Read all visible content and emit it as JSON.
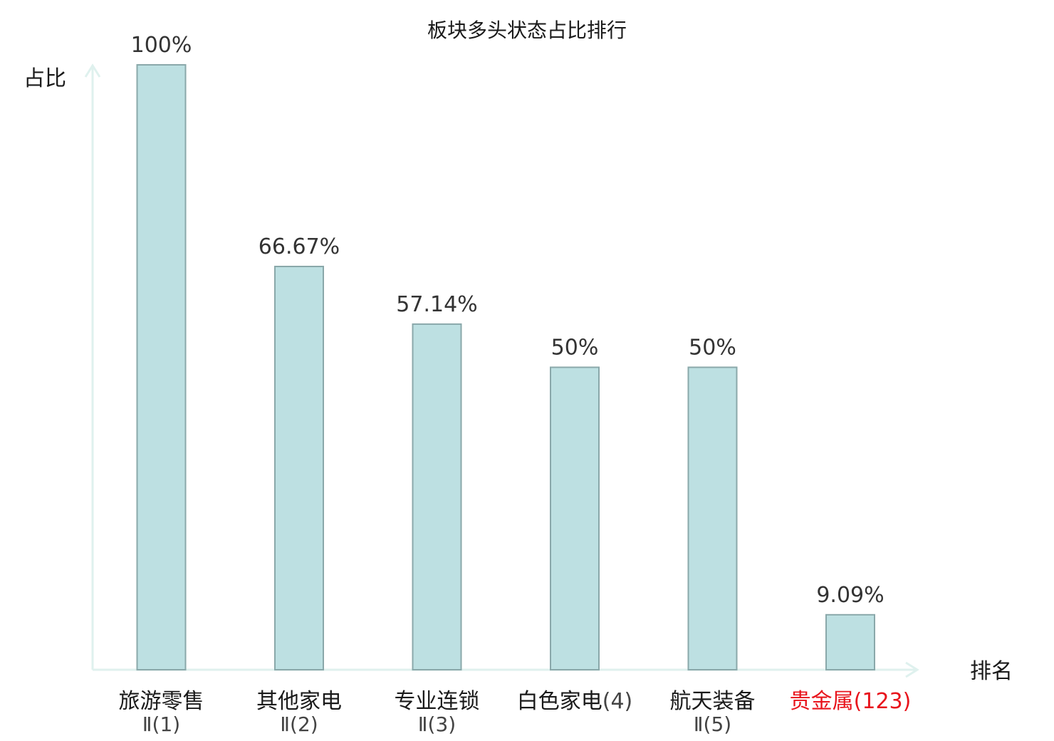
{
  "chart_data": {
    "type": "bar",
    "title": "板块多头状态占比排行",
    "ylabel": "占比",
    "xlabel": "排名",
    "ylim": [
      0,
      100
    ],
    "grid": false,
    "categories": [
      {
        "name": "旅游零售",
        "rank": "Ⅱ(1)"
      },
      {
        "name": "其他家电",
        "rank": "Ⅱ(2)"
      },
      {
        "name": "专业连锁",
        "rank": "Ⅱ(3)"
      },
      {
        "name": "白色家电",
        "rank": "(4)"
      },
      {
        "name": "航天装备",
        "rank": "Ⅱ(5)"
      },
      {
        "name": "贵金属",
        "rank": "(123)",
        "highlight": true
      }
    ],
    "values": [
      100,
      66.67,
      57.14,
      50,
      50,
      9.09
    ],
    "value_labels": [
      "100%",
      "66.67%",
      "57.14%",
      "50%",
      "50%",
      "9.09%"
    ]
  },
  "colors": {
    "bar_fill": "#bde0e2",
    "bar_stroke": "#8aa8aa",
    "axis": "#dff1ee",
    "text": "#1a1a1a",
    "value_text": "#333333",
    "rank_text": "#444444",
    "highlight": "#e8141c"
  }
}
